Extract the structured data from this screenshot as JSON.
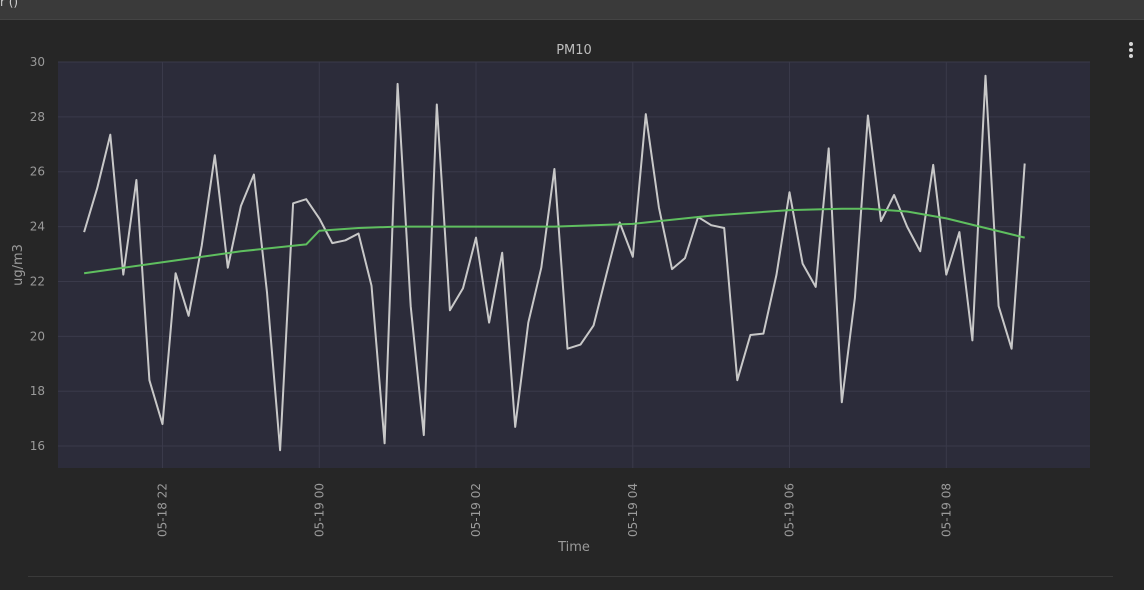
{
  "topbar": {
    "text": "r  ()"
  },
  "chart_data": {
    "type": "line",
    "title": "PM10",
    "xlabel": "Time",
    "ylabel": "ug/m3",
    "ylim": [
      15.2,
      30
    ],
    "y_ticks": [
      16,
      18,
      20,
      22,
      24,
      26,
      28,
      30
    ],
    "x_ticks": [
      {
        "t": "2023-05-18 22:00",
        "label": "05-18 22"
      },
      {
        "t": "2023-05-19 00:00",
        "label": "05-19 00"
      },
      {
        "t": "2023-05-19 02:00",
        "label": "05-19 02"
      },
      {
        "t": "2023-05-19 04:00",
        "label": "05-19 04"
      },
      {
        "t": "2023-05-19 06:00",
        "label": "05-19 06"
      },
      {
        "t": "2023-05-19 08:00",
        "label": "05-19 08"
      }
    ],
    "xlim": [
      "2023-05-18 20:40",
      "2023-05-19 09:50"
    ],
    "grid": true,
    "colors": {
      "plot_bg": "#2c2c3a",
      "raw": "#c8c8c8",
      "trend": "#5fbf5f",
      "grid": "#3a3a4a"
    },
    "series": [
      {
        "key": "raw",
        "x": [
          "2023-05-18 21:00",
          "2023-05-18 21:10",
          "2023-05-18 21:20",
          "2023-05-18 21:30",
          "2023-05-18 21:40",
          "2023-05-18 21:50",
          "2023-05-18 22:00",
          "2023-05-18 22:10",
          "2023-05-18 22:20",
          "2023-05-18 22:30",
          "2023-05-18 22:40",
          "2023-05-18 22:50",
          "2023-05-18 23:00",
          "2023-05-18 23:10",
          "2023-05-18 23:20",
          "2023-05-18 23:30",
          "2023-05-18 23:40",
          "2023-05-18 23:50",
          "2023-05-19 00:00",
          "2023-05-19 00:10",
          "2023-05-19 00:20",
          "2023-05-19 00:30",
          "2023-05-19 00:40",
          "2023-05-19 00:50",
          "2023-05-19 01:00",
          "2023-05-19 01:10",
          "2023-05-19 01:20",
          "2023-05-19 01:30",
          "2023-05-19 01:40",
          "2023-05-19 01:50",
          "2023-05-19 02:00",
          "2023-05-19 02:10",
          "2023-05-19 02:20",
          "2023-05-19 02:30",
          "2023-05-19 02:40",
          "2023-05-19 02:50",
          "2023-05-19 03:00",
          "2023-05-19 03:10",
          "2023-05-19 03:20",
          "2023-05-19 03:30",
          "2023-05-19 03:40",
          "2023-05-19 03:50",
          "2023-05-19 04:00",
          "2023-05-19 04:10",
          "2023-05-19 04:20",
          "2023-05-19 04:30",
          "2023-05-19 04:40",
          "2023-05-19 04:50",
          "2023-05-19 05:00",
          "2023-05-19 05:10",
          "2023-05-19 05:20",
          "2023-05-19 05:30",
          "2023-05-19 05:40",
          "2023-05-19 05:50",
          "2023-05-19 06:00",
          "2023-05-19 06:10",
          "2023-05-19 06:20",
          "2023-05-19 06:30",
          "2023-05-19 06:40",
          "2023-05-19 06:50",
          "2023-05-19 07:00",
          "2023-05-19 07:10",
          "2023-05-19 07:20",
          "2023-05-19 07:30",
          "2023-05-19 07:40",
          "2023-05-19 07:50",
          "2023-05-19 08:00",
          "2023-05-19 08:10",
          "2023-05-19 08:20",
          "2023-05-19 08:30",
          "2023-05-19 08:40",
          "2023-05-19 08:50",
          "2023-05-19 09:00"
        ],
        "values": [
          23.8,
          25.4,
          27.35,
          22.25,
          25.7,
          18.4,
          16.8,
          22.3,
          20.75,
          23.3,
          26.6,
          22.5,
          24.75,
          25.9,
          21.6,
          15.85,
          24.85,
          25.0,
          24.3,
          23.4,
          23.5,
          23.75,
          21.85,
          16.1,
          29.2,
          21.1,
          16.4,
          28.45,
          20.95,
          21.75,
          23.6,
          20.5,
          23.05,
          16.7,
          20.5,
          22.5,
          26.1,
          19.55,
          19.7,
          20.4,
          22.3,
          24.15,
          22.9,
          28.1,
          24.7,
          22.45,
          22.85,
          24.35,
          24.05,
          23.95,
          18.4,
          20.05,
          20.1,
          22.25,
          25.25,
          22.65,
          21.8,
          26.85,
          17.6,
          21.4,
          28.05,
          24.2,
          25.15,
          24.0,
          23.1,
          26.25,
          22.25,
          23.8,
          19.85,
          29.5,
          21.1,
          19.55,
          26.3
        ]
      },
      {
        "key": "trend",
        "x": [
          "2023-05-18 21:00",
          "2023-05-18 22:00",
          "2023-05-18 23:00",
          "2023-05-18 23:50",
          "2023-05-19 00:00",
          "2023-05-19 00:30",
          "2023-05-19 01:00",
          "2023-05-19 02:00",
          "2023-05-19 03:00",
          "2023-05-19 04:00",
          "2023-05-19 05:00",
          "2023-05-19 06:00",
          "2023-05-19 06:40",
          "2023-05-19 07:00",
          "2023-05-19 07:30",
          "2023-05-19 08:00",
          "2023-05-19 08:30",
          "2023-05-19 09:00"
        ],
        "values": [
          22.3,
          22.7,
          23.1,
          23.35,
          23.85,
          23.95,
          24.0,
          24.0,
          24.0,
          24.1,
          24.4,
          24.6,
          24.65,
          24.65,
          24.55,
          24.3,
          23.95,
          23.6
        ]
      }
    ]
  }
}
